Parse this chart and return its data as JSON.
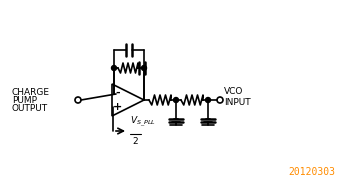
{
  "bg_color": "#ffffff",
  "line_color": "#000000",
  "accent_color": "#ff8c00",
  "watermark": "20120303",
  "watermark_color": "#ff8c00",
  "labels": {
    "charge_pump": [
      "CHARGE",
      "PUMP",
      "OUTPUT"
    ],
    "vco": "VCO",
    "input": "INPUT",
    "vs_pll": "V",
    "vs_pll_sub": "S_PLL",
    "vs_pll_denom": "2",
    "minus": "-",
    "plus": "+"
  },
  "figsize": [
    3.5,
    1.87
  ],
  "dpi": 100
}
